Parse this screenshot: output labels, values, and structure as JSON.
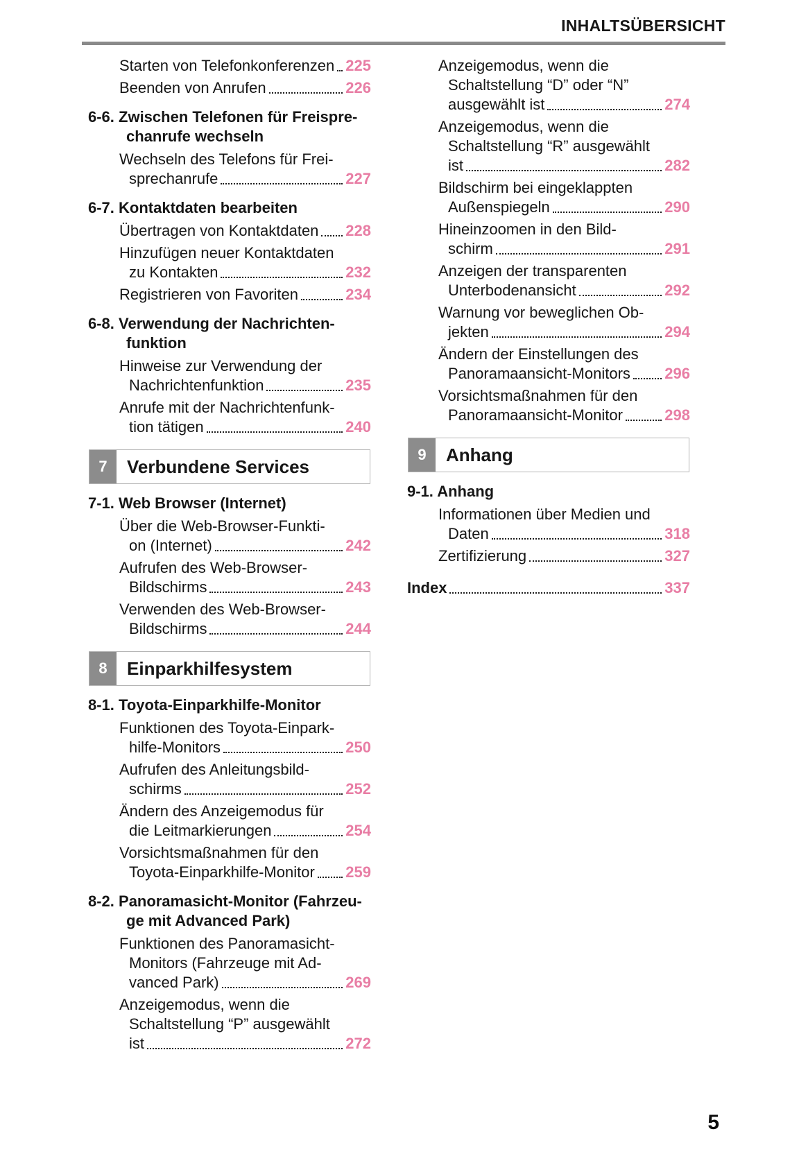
{
  "theme": {
    "accent_color": "#e87da4",
    "chapter_badge_color": "#8c8c8c",
    "rule_color": "#8a8a8a"
  },
  "header": {
    "title": "INHALTSÜBERSICHT"
  },
  "footer": {
    "page_number": "5"
  },
  "columns": [
    {
      "blocks": [
        {
          "type": "entry",
          "lines": [
            "Starten von Telefonkonferenzen"
          ],
          "page": "225"
        },
        {
          "type": "entry",
          "lines": [
            "Beenden von Anrufen"
          ],
          "page": "226"
        },
        {
          "type": "section",
          "lines": [
            "6-6. Zwischen Telefonen für Freispre-",
            "chanrufe wechseln"
          ]
        },
        {
          "type": "entry",
          "lines": [
            "Wechseln des Telefons für Frei-",
            "sprechanrufe"
          ],
          "page": "227"
        },
        {
          "type": "section",
          "lines": [
            "6-7. Kontaktdaten bearbeiten"
          ]
        },
        {
          "type": "entry",
          "lines": [
            "Übertragen von Kontaktdaten"
          ],
          "page": "228"
        },
        {
          "type": "entry",
          "lines": [
            "Hinzufügen neuer Kontaktdaten",
            "zu Kontakten"
          ],
          "page": "232"
        },
        {
          "type": "entry",
          "lines": [
            "Registrieren von Favoriten"
          ],
          "page": "234"
        },
        {
          "type": "section",
          "lines": [
            "6-8. Verwendung der Nachrichten-",
            "funktion"
          ]
        },
        {
          "type": "entry",
          "lines": [
            "Hinweise zur Verwendung der",
            "Nachrichtenfunktion"
          ],
          "page": "235"
        },
        {
          "type": "entry",
          "lines": [
            "Anrufe mit der Nachrichtenfunk-",
            "tion tätigen"
          ],
          "page": "240"
        },
        {
          "type": "chapter",
          "num": "7",
          "title": "Verbundene Services"
        },
        {
          "type": "section",
          "lines": [
            "7-1. Web Browser (Internet)"
          ]
        },
        {
          "type": "entry",
          "lines": [
            "Über die Web-Browser-Funkti-",
            "on (Internet)"
          ],
          "page": "242"
        },
        {
          "type": "entry",
          "lines": [
            "Aufrufen des Web-Browser-",
            "Bildschirms"
          ],
          "page": "243"
        },
        {
          "type": "entry",
          "lines": [
            "Verwenden des Web-Browser-",
            "Bildschirms"
          ],
          "page": "244"
        },
        {
          "type": "chapter",
          "num": "8",
          "title": "Einparkhilfesystem"
        },
        {
          "type": "section",
          "lines": [
            "8-1. Toyota-Einparkhilfe-Monitor"
          ]
        },
        {
          "type": "entry",
          "lines": [
            "Funktionen des Toyota-Einpark-",
            "hilfe-Monitors"
          ],
          "page": "250"
        },
        {
          "type": "entry",
          "lines": [
            "Aufrufen des Anleitungsbild-",
            "schirms"
          ],
          "page": "252"
        },
        {
          "type": "entry",
          "lines": [
            "Ändern des Anzeigemodus für",
            "die Leitmarkierungen"
          ],
          "page": "254"
        },
        {
          "type": "entry",
          "lines": [
            "Vorsichtsmaßnahmen für den",
            "Toyota-Einparkhilfe-Monitor"
          ],
          "page": "259"
        },
        {
          "type": "section",
          "lines": [
            "8-2. Panoramasicht-Monitor (Fahrzeu-",
            "ge mit Advanced Park)"
          ]
        },
        {
          "type": "entry",
          "lines": [
            "Funktionen des Panoramasicht-",
            "Monitors (Fahrzeuge mit Ad-",
            "vanced Park)"
          ],
          "page": "269"
        },
        {
          "type": "entry",
          "lines": [
            "Anzeigemodus, wenn die",
            "Schaltstellung “P” ausgewählt",
            "ist"
          ],
          "page": "272"
        }
      ]
    },
    {
      "blocks": [
        {
          "type": "entry",
          "lines": [
            "Anzeigemodus, wenn die",
            "Schaltstellung “D” oder “N”",
            "ausgewählt ist"
          ],
          "page": "274"
        },
        {
          "type": "entry",
          "lines": [
            "Anzeigemodus, wenn die",
            "Schaltstellung “R” ausgewählt",
            "ist"
          ],
          "page": "282"
        },
        {
          "type": "entry",
          "lines": [
            "Bildschirm bei eingeklappten",
            "Außenspiegeln"
          ],
          "page": "290"
        },
        {
          "type": "entry",
          "lines": [
            "Hineinzoomen in den Bild-",
            "schirm"
          ],
          "page": "291"
        },
        {
          "type": "entry",
          "lines": [
            "Anzeigen der transparenten",
            "Unterbodenansicht"
          ],
          "page": "292"
        },
        {
          "type": "entry",
          "lines": [
            "Warnung vor beweglichen Ob-",
            "jekten"
          ],
          "page": "294"
        },
        {
          "type": "entry",
          "lines": [
            "Ändern der Einstellungen des",
            "Panoramaansicht-Monitors"
          ],
          "page": "296"
        },
        {
          "type": "entry",
          "lines": [
            "Vorsichtsmaßnahmen für den",
            "Panoramaansicht-Monitor"
          ],
          "page": "298"
        },
        {
          "type": "chapter",
          "num": "9",
          "title": "Anhang"
        },
        {
          "type": "section",
          "lines": [
            "9-1. Anhang"
          ]
        },
        {
          "type": "entry",
          "lines": [
            "Informationen über Medien und",
            "Daten"
          ],
          "page": "318"
        },
        {
          "type": "entry",
          "lines": [
            "Zertifizierung"
          ],
          "page": "327"
        },
        {
          "type": "entry",
          "variant": "index",
          "lines": [
            "Index"
          ],
          "page": "337"
        }
      ]
    }
  ]
}
